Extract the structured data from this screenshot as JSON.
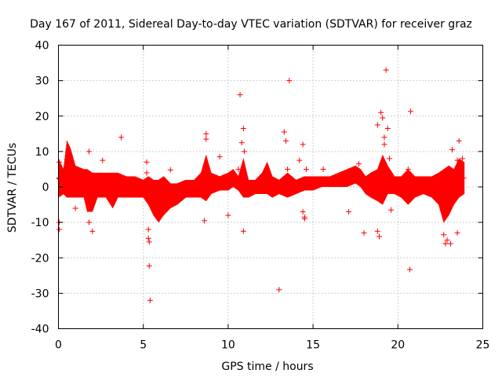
{
  "chart_data": {
    "type": "scatter",
    "title": "Day 167 of 2011, Sidereal Day-to-day VTEC variation (SDTVAR) for receiver graz",
    "xlabel": "GPS time / hours",
    "ylabel": "SDTVAR / TECUs",
    "xlim": [
      0,
      25
    ],
    "ylim": [
      -40,
      40
    ],
    "x_ticks": [
      0,
      5,
      10,
      15,
      20,
      25
    ],
    "y_ticks": [
      -40,
      -30,
      -20,
      -10,
      0,
      10,
      20,
      30,
      40
    ],
    "grid": true,
    "marker": "+",
    "color": "#ff0000",
    "envelope": [
      [
        0.0,
        -3,
        8
      ],
      [
        0.3,
        -2,
        5
      ],
      [
        0.5,
        -3,
        13
      ],
      [
        0.7,
        -3,
        11
      ],
      [
        1.0,
        -3,
        6
      ],
      [
        1.5,
        -3,
        5
      ],
      [
        1.7,
        -7,
        5
      ],
      [
        2.0,
        -7,
        4
      ],
      [
        2.3,
        -3,
        4
      ],
      [
        2.8,
        -3,
        4
      ],
      [
        3.2,
        -6,
        4
      ],
      [
        3.5,
        -3,
        4
      ],
      [
        4.0,
        -3,
        3
      ],
      [
        4.5,
        -3,
        3
      ],
      [
        5.0,
        -3,
        2
      ],
      [
        5.3,
        -5,
        3
      ],
      [
        5.6,
        -8,
        2
      ],
      [
        5.9,
        -10,
        2
      ],
      [
        6.2,
        -8,
        3
      ],
      [
        6.6,
        -6,
        1
      ],
      [
        7.0,
        -5,
        1
      ],
      [
        7.5,
        -3,
        2
      ],
      [
        8.0,
        -3,
        2
      ],
      [
        8.4,
        -3,
        4
      ],
      [
        8.7,
        -4,
        9
      ],
      [
        9.0,
        -2,
        4
      ],
      [
        9.5,
        -1,
        3
      ],
      [
        10.0,
        -1,
        4
      ],
      [
        10.3,
        0,
        5
      ],
      [
        10.6,
        -1,
        3
      ],
      [
        10.9,
        -3,
        8
      ],
      [
        11.2,
        -3,
        2
      ],
      [
        11.6,
        -2,
        2
      ],
      [
        12.0,
        -2,
        4
      ],
      [
        12.3,
        -2,
        7
      ],
      [
        12.6,
        -3,
        3
      ],
      [
        13.0,
        -2,
        2
      ],
      [
        13.5,
        -3,
        4
      ],
      [
        14.0,
        -2,
        2
      ],
      [
        14.5,
        -1,
        3
      ],
      [
        15.0,
        -1,
        3
      ],
      [
        15.5,
        0,
        3
      ],
      [
        16.0,
        0,
        3
      ],
      [
        16.5,
        0,
        4
      ],
      [
        17.0,
        0,
        5
      ],
      [
        17.5,
        1,
        6
      ],
      [
        17.8,
        0,
        5
      ],
      [
        18.1,
        -2,
        3
      ],
      [
        18.4,
        -3,
        4
      ],
      [
        18.8,
        -4,
        5
      ],
      [
        19.1,
        -5,
        9
      ],
      [
        19.4,
        -2,
        6
      ],
      [
        19.8,
        -2,
        3
      ],
      [
        20.2,
        -3,
        3
      ],
      [
        20.6,
        -5,
        5
      ],
      [
        21.0,
        -3,
        3
      ],
      [
        21.5,
        -2,
        3
      ],
      [
        22.0,
        -3,
        3
      ],
      [
        22.4,
        -5,
        4
      ],
      [
        22.7,
        -10,
        5
      ],
      [
        23.0,
        -8,
        6
      ],
      [
        23.3,
        -5,
        5
      ],
      [
        23.6,
        -3,
        8
      ],
      [
        23.9,
        -2,
        7
      ]
    ],
    "outliers": [
      [
        0.05,
        7
      ],
      [
        0.05,
        -10
      ],
      [
        0.05,
        -12
      ],
      [
        1.0,
        -6
      ],
      [
        1.8,
        10
      ],
      [
        1.8,
        -10
      ],
      [
        2.0,
        -12.5
      ],
      [
        2.6,
        7.5
      ],
      [
        3.7,
        14
      ],
      [
        5.2,
        7
      ],
      [
        5.3,
        -12
      ],
      [
        5.3,
        -14.5
      ],
      [
        5.35,
        -15.5
      ],
      [
        5.35,
        -22.3
      ],
      [
        5.4,
        -32
      ],
      [
        5.2,
        4
      ],
      [
        6.6,
        4.8
      ],
      [
        8.6,
        -9.5
      ],
      [
        8.7,
        15
      ],
      [
        8.7,
        13.5
      ],
      [
        9.5,
        8.5
      ],
      [
        10.0,
        -8
      ],
      [
        10.6,
        5
      ],
      [
        10.7,
        26
      ],
      [
        10.8,
        12.5
      ],
      [
        10.9,
        16.5
      ],
      [
        10.9,
        -12.5
      ],
      [
        10.95,
        10
      ],
      [
        13.0,
        -29
      ],
      [
        13.3,
        15.5
      ],
      [
        13.4,
        13
      ],
      [
        13.5,
        5
      ],
      [
        13.6,
        30
      ],
      [
        14.2,
        7.5
      ],
      [
        14.4,
        12
      ],
      [
        14.4,
        -7
      ],
      [
        14.5,
        -8.5
      ],
      [
        14.5,
        -9
      ],
      [
        14.6,
        5
      ],
      [
        15.6,
        5
      ],
      [
        17.1,
        -7
      ],
      [
        17.7,
        6.5
      ],
      [
        18.0,
        -13
      ],
      [
        18.8,
        17.5
      ],
      [
        18.8,
        -12.5
      ],
      [
        18.9,
        -14
      ],
      [
        19.0,
        21
      ],
      [
        19.1,
        19.5
      ],
      [
        19.2,
        14
      ],
      [
        19.2,
        12
      ],
      [
        19.3,
        33
      ],
      [
        19.4,
        16.5
      ],
      [
        19.5,
        8
      ],
      [
        19.6,
        -6.5
      ],
      [
        20.7,
        -23.3
      ],
      [
        20.75,
        21.3
      ],
      [
        20.6,
        5
      ],
      [
        22.7,
        -13.5
      ],
      [
        22.8,
        -16
      ],
      [
        22.9,
        -15
      ],
      [
        23.1,
        -16
      ],
      [
        23.2,
        10.5
      ],
      [
        23.5,
        -13
      ],
      [
        23.5,
        7.5
      ],
      [
        23.6,
        13
      ],
      [
        23.8,
        8
      ]
    ]
  }
}
